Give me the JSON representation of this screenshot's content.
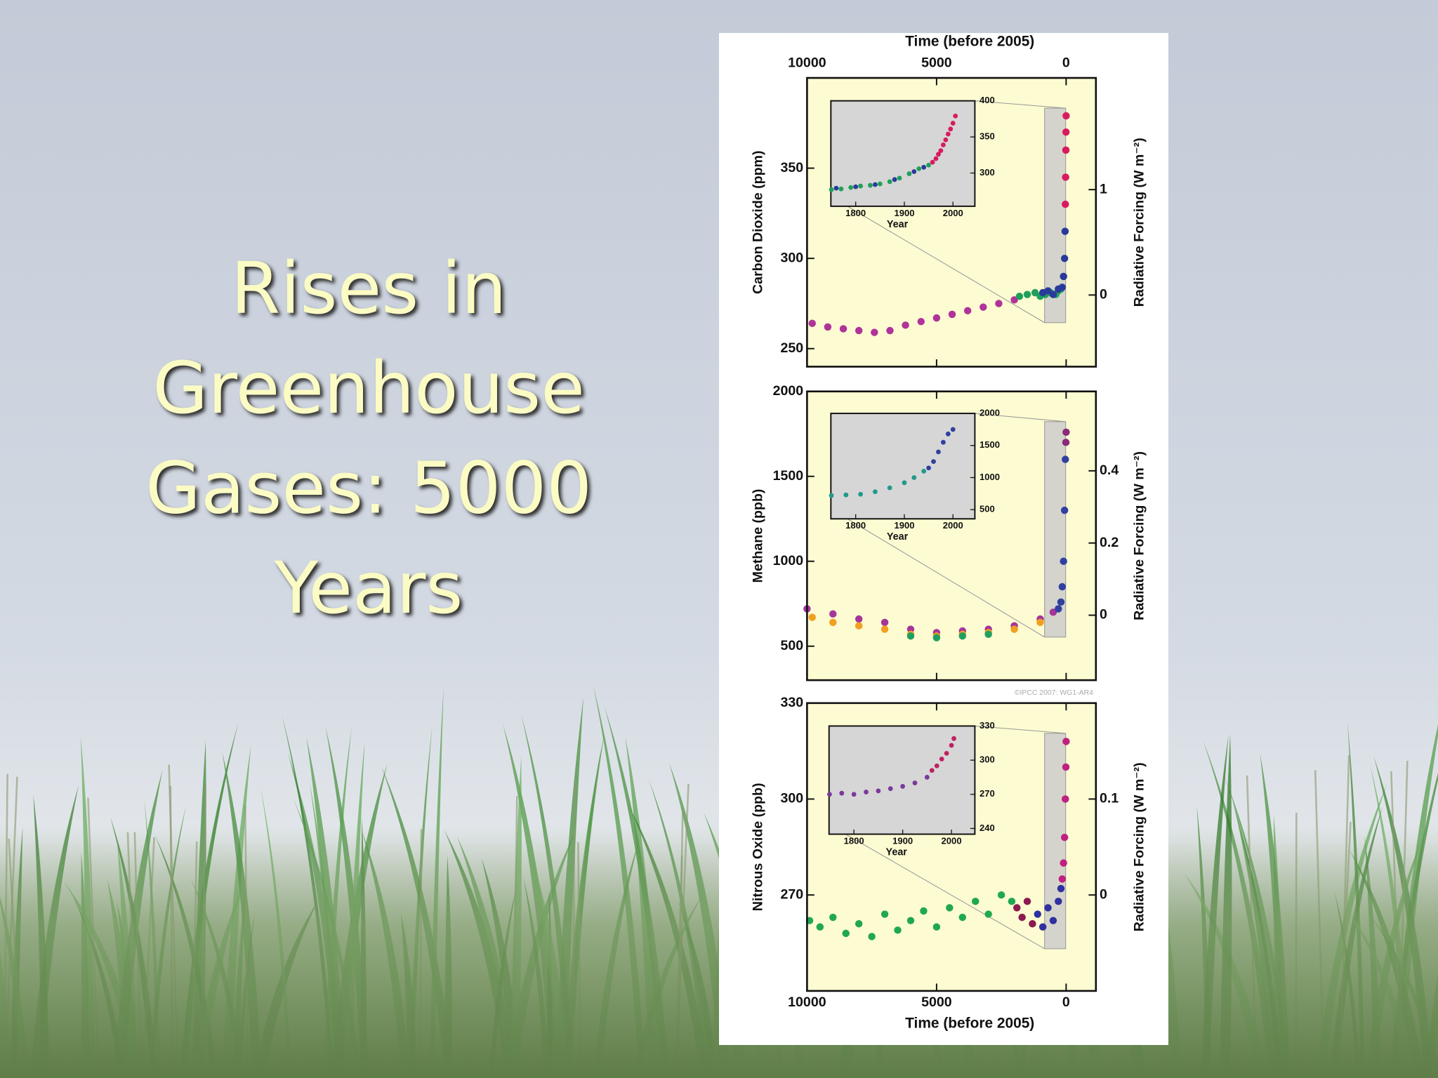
{
  "slide": {
    "title_lines": [
      "Rises in",
      "Greenhouse",
      "Gases: 5000",
      "Years"
    ]
  },
  "chart_data": [
    {
      "type": "scatter",
      "xlabel": "Time (before 2005)",
      "xaxis_position": "top",
      "ylabel": "Carbon Dioxide (ppm)",
      "y2label": "Radiative Forcing (W m⁻²)",
      "xlim": [
        10000,
        -1150
      ],
      "xticks": [
        10000,
        5000,
        0
      ],
      "ylim": [
        240,
        400
      ],
      "yticks": [
        250,
        300,
        350
      ],
      "y2lim": [
        -0.68,
        2.06
      ],
      "y2ticks": [
        0,
        1
      ],
      "series": [
        {
          "color": "#b0339a",
          "x": [
            9800,
            9200,
            8600,
            8000,
            7400,
            6800,
            6200,
            5600,
            5000,
            4400,
            3800,
            3200,
            2600,
            2000
          ],
          "values": [
            264,
            262,
            261,
            260,
            259,
            260,
            263,
            265,
            267,
            269,
            271,
            273,
            275,
            277
          ]
        },
        {
          "color": "#1fa05a",
          "x": [
            1800,
            1500,
            1200,
            1000,
            800,
            600,
            400,
            300,
            200
          ],
          "values": [
            279,
            280,
            281,
            279,
            280,
            281,
            280,
            282,
            283
          ]
        },
        {
          "color": "#2a3a9a",
          "x": [
            900,
            700,
            500,
            300,
            150,
            100,
            60,
            40
          ],
          "values": [
            281,
            282,
            280,
            283,
            284,
            290,
            300,
            315
          ]
        },
        {
          "color": "#d81b60",
          "x": [
            30,
            20,
            10,
            5,
            0
          ],
          "values": [
            330,
            345,
            360,
            370,
            379
          ]
        }
      ],
      "inset": {
        "xlabel": "Year",
        "xlim": [
          1749,
          2045
        ],
        "xticks": [
          1800,
          1900,
          2000
        ],
        "ylim": [
          254,
          400
        ],
        "yticks": [
          300,
          350,
          400
        ],
        "series": [
          {
            "color": "#1fa05a",
            "x": [
              1750,
              1770,
              1790,
              1810,
              1830,
              1850,
              1870,
              1890,
              1910,
              1930,
              1950
            ],
            "values": [
              277,
              278,
              280,
              282,
              283,
              285,
              288,
              293,
              299,
              306,
              311
            ]
          },
          {
            "color": "#2a3a9a",
            "x": [
              1760,
              1800,
              1840,
              1880,
              1920,
              1940
            ],
            "values": [
              279,
              281,
              284,
              291,
              302,
              308
            ]
          },
          {
            "color": "#d81b60",
            "x": [
              1958,
              1965,
              1970,
              1975,
              1980,
              1985,
              1990,
              1995,
              2000,
              2005
            ],
            "values": [
              315,
              320,
              326,
              331,
              339,
              346,
              354,
              361,
              369,
              379
            ]
          }
        ]
      }
    },
    {
      "type": "scatter",
      "ylabel": "Methane (ppb)",
      "y2label": "Radiative Forcing (W m⁻²)",
      "credit": "©IPCC 2007: WG1-AR4",
      "xlim": [
        10000,
        -1150
      ],
      "xticks": [
        10000,
        5000,
        0
      ],
      "ylim": [
        300,
        2000
      ],
      "yticks": [
        500,
        1000,
        1500,
        2000
      ],
      "y2lim": [
        -0.18,
        0.62
      ],
      "y2ticks": [
        0,
        0.2,
        0.4
      ],
      "series": [
        {
          "color": "#a6359a",
          "x": [
            10000,
            9000,
            8000,
            7000,
            6000,
            5000,
            4000,
            3000,
            2000,
            1000,
            500
          ],
          "values": [
            720,
            690,
            660,
            640,
            600,
            580,
            590,
            600,
            620,
            660,
            700
          ]
        },
        {
          "color": "#f0a020",
          "x": [
            9800,
            9000,
            8000,
            7000,
            6000,
            5000,
            4000,
            3000,
            2000,
            1000
          ],
          "values": [
            670,
            640,
            620,
            600,
            570,
            560,
            570,
            580,
            600,
            640
          ]
        },
        {
          "color": "#20a060",
          "x": [
            6000,
            5000,
            4000,
            3000
          ],
          "values": [
            560,
            550,
            560,
            570
          ]
        },
        {
          "color": "#3040a0",
          "x": [
            300,
            200,
            150,
            100,
            60,
            30
          ],
          "values": [
            720,
            760,
            850,
            1000,
            1300,
            1600
          ]
        },
        {
          "color": "#8a2a7a",
          "x": [
            10,
            0
          ],
          "values": [
            1700,
            1760
          ]
        }
      ],
      "inset": {
        "xlabel": "Year",
        "xlim": [
          1749,
          2045
        ],
        "xticks": [
          1800,
          1900,
          2000
        ],
        "ylim": [
          357,
          2000
        ],
        "yticks": [
          500,
          1000,
          1500,
          2000
        ],
        "series": [
          {
            "color": "#209a8a",
            "x": [
              1750,
              1780,
              1810,
              1840,
              1870,
              1900,
              1920,
              1940
            ],
            "values": [
              720,
              730,
              740,
              780,
              840,
              920,
              1000,
              1100
            ]
          },
          {
            "color": "#3040a0",
            "x": [
              1950,
              1960,
              1970,
              1980,
              1990,
              2000
            ],
            "values": [
              1150,
              1250,
              1400,
              1550,
              1680,
              1750
            ]
          }
        ]
      }
    },
    {
      "type": "scatter",
      "xlabel": "Time (before 2005)",
      "xaxis_position": "bottom",
      "ylabel": "Nitrous Oxide (ppb)",
      "y2label": "Radiative Forcing (W m⁻²)",
      "xlim": [
        10000,
        -1150
      ],
      "xticks": [
        10000,
        5000,
        0
      ],
      "ylim": [
        240,
        330
      ],
      "yticks": [
        270,
        300,
        330
      ],
      "y2lim": [
        -0.1,
        0.2
      ],
      "y2ticks": [
        0,
        0.1
      ],
      "series": [
        {
          "color": "#20a850",
          "x": [
            9900,
            9500,
            9000,
            8500,
            8000,
            7500,
            7000,
            6500,
            6000,
            5500,
            5000,
            4500,
            4000,
            3500,
            3000,
            2500,
            2100
          ],
          "values": [
            262,
            260,
            263,
            258,
            261,
            257,
            264,
            259,
            262,
            265,
            260,
            266,
            263,
            268,
            264,
            270,
            268
          ]
        },
        {
          "color": "#8a1a50",
          "x": [
            1900,
            1700,
            1500,
            1300
          ],
          "values": [
            266,
            263,
            268,
            261
          ]
        },
        {
          "color": "#3030a0",
          "x": [
            1100,
            900,
            700,
            500,
            300,
            200
          ],
          "values": [
            264,
            260,
            266,
            262,
            268,
            272
          ]
        },
        {
          "color": "#c02080",
          "x": [
            150,
            100,
            60,
            30,
            10,
            0
          ],
          "values": [
            275,
            280,
            288,
            300,
            310,
            318
          ]
        }
      ],
      "inset": {
        "xlabel": "Year",
        "xlim": [
          1749,
          2048
        ],
        "xticks": [
          1800,
          1900,
          2000
        ],
        "ylim": [
          235,
          330
        ],
        "yticks": [
          240,
          270,
          300,
          330
        ],
        "series": [
          {
            "color": "#7a3a9a",
            "x": [
              1750,
              1775,
              1800,
              1825,
              1850,
              1875,
              1900,
              1925,
              1950
            ],
            "values": [
              270,
              271,
              270,
              272,
              273,
              275,
              277,
              280,
              285
            ]
          },
          {
            "color": "#c02060",
            "x": [
              1960,
              1970,
              1980,
              1990,
              2000,
              2005
            ],
            "values": [
              291,
              295,
              301,
              306,
              313,
              319
            ]
          }
        ]
      }
    }
  ]
}
